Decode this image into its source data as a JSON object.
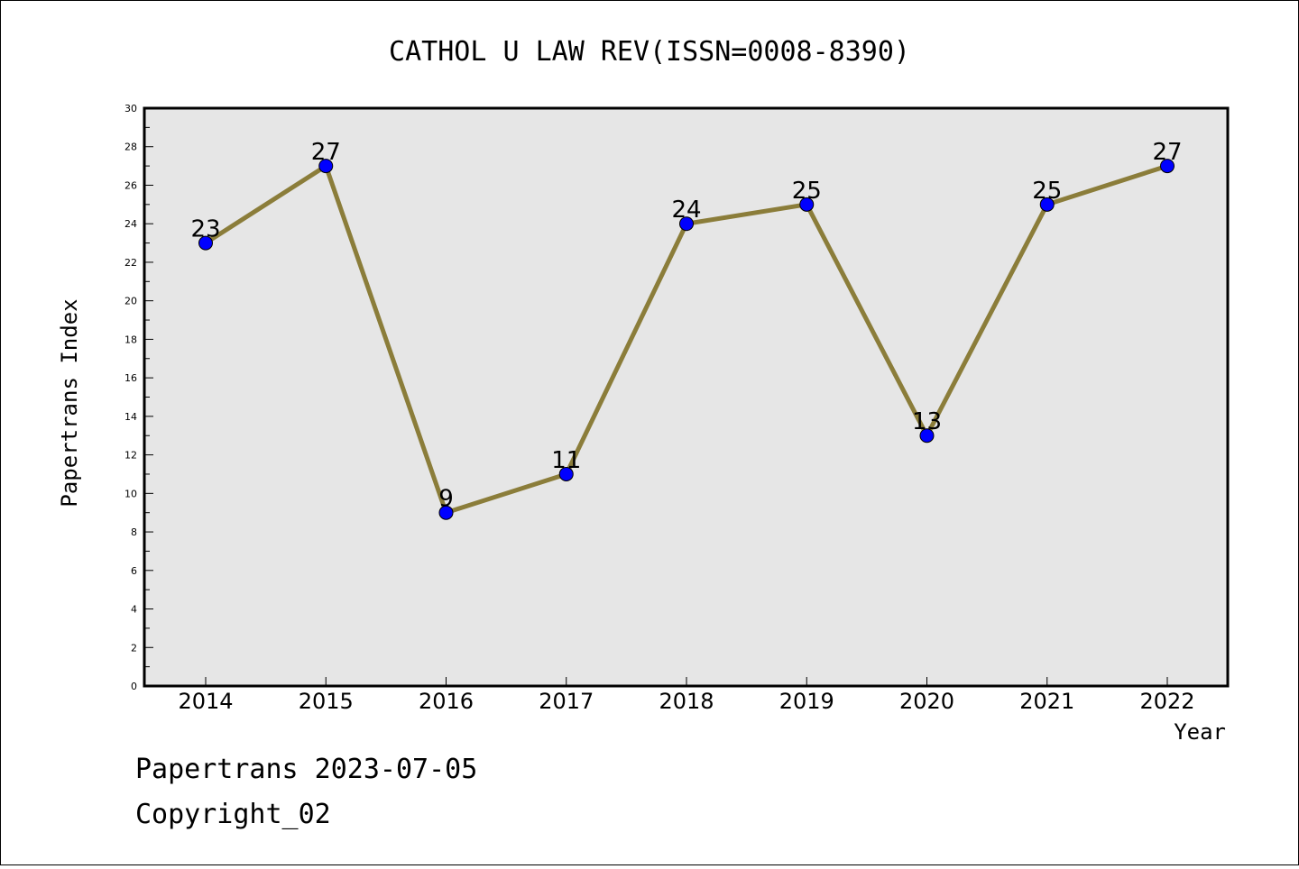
{
  "chart_data": {
    "type": "line",
    "title": "CATHOL U LAW REV(ISSN=0008-8390)",
    "xlabel": "Year",
    "ylabel": "Papertrans Index",
    "categories": [
      "2014",
      "2015",
      "2016",
      "2017",
      "2018",
      "2019",
      "2020",
      "2021",
      "2022"
    ],
    "values": [
      23,
      27,
      9,
      11,
      24,
      25,
      13,
      25,
      27
    ],
    "data_labels": [
      "23",
      "27",
      "9",
      "11",
      "24",
      "25",
      "13",
      "25",
      "27"
    ],
    "ylim": [
      0,
      30
    ],
    "yticks": [
      "0",
      "2",
      "4",
      "6",
      "8",
      "10",
      "12",
      "14",
      "16",
      "18",
      "20",
      "22",
      "24",
      "26",
      "28",
      "30"
    ],
    "grid": false,
    "legend": "none",
    "colors": {
      "line": "#8B7D3A",
      "marker": "#0000FF",
      "plot_background": "#E6E6E6"
    }
  },
  "footer": {
    "line1": "Papertrans 2023-07-05",
    "line2": "Copyright_02"
  }
}
